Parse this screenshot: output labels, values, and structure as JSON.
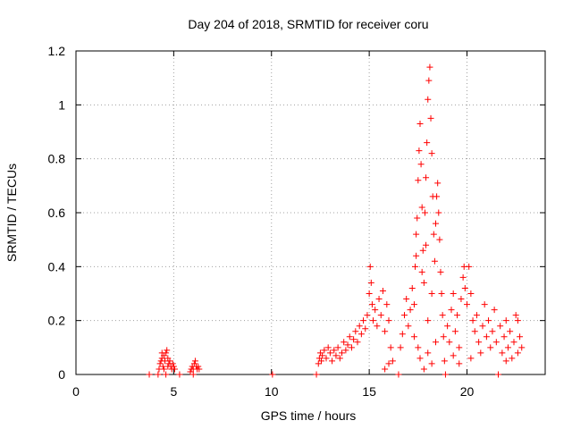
{
  "chart_data": {
    "type": "scatter",
    "title": "Day 204 of 2018, SRMTID for receiver coru",
    "xlabel": "GPS time / hours",
    "ylabel": "SRMTID / TECUs",
    "xlim": [
      0,
      24
    ],
    "ylim": [
      0,
      1.2
    ],
    "x_ticks": [
      0,
      5,
      10,
      15,
      20
    ],
    "x_tick_labels": [
      "0",
      "5",
      "10",
      "15",
      "20"
    ],
    "y_ticks": [
      0,
      0.2,
      0.4,
      0.6,
      0.8,
      1.0,
      1.2
    ],
    "y_tick_labels": [
      "0",
      "0.2",
      "0.4",
      "0.6",
      "0.8",
      "1",
      "1.2"
    ],
    "grid": true,
    "marker": "plus",
    "color": "#ff0000",
    "series": [
      {
        "name": "SRMTID",
        "points": [
          [
            3.75,
            0.0
          ],
          [
            4.2,
            0.0
          ],
          [
            4.6,
            0.0
          ],
          [
            5.3,
            0.0
          ],
          [
            6.0,
            0.0
          ],
          [
            4.25,
            0.02
          ],
          [
            4.3,
            0.04
          ],
          [
            4.35,
            0.05
          ],
          [
            4.4,
            0.06
          ],
          [
            4.45,
            0.03
          ],
          [
            4.5,
            0.07
          ],
          [
            4.55,
            0.05
          ],
          [
            4.6,
            0.08
          ],
          [
            4.65,
            0.09
          ],
          [
            4.7,
            0.06
          ],
          [
            4.75,
            0.04
          ],
          [
            4.8,
            0.05
          ],
          [
            4.85,
            0.03
          ],
          [
            4.9,
            0.02
          ],
          [
            4.95,
            0.04
          ],
          [
            5.0,
            0.03
          ],
          [
            5.05,
            0.02
          ],
          [
            4.5,
            0.02
          ],
          [
            4.7,
            0.03
          ],
          [
            4.4,
            0.08
          ],
          [
            5.85,
            0.01
          ],
          [
            5.9,
            0.02
          ],
          [
            5.95,
            0.03
          ],
          [
            6.0,
            0.02
          ],
          [
            6.05,
            0.04
          ],
          [
            6.1,
            0.05
          ],
          [
            6.15,
            0.03
          ],
          [
            6.2,
            0.02
          ],
          [
            6.25,
            0.03
          ],
          [
            6.3,
            0.02
          ],
          [
            10.05,
            0.0
          ],
          [
            12.3,
            0.0
          ],
          [
            12.4,
            0.04
          ],
          [
            12.45,
            0.06
          ],
          [
            12.5,
            0.08
          ],
          [
            12.55,
            0.05
          ],
          [
            12.6,
            0.07
          ],
          [
            12.7,
            0.09
          ],
          [
            12.8,
            0.06
          ],
          [
            12.9,
            0.1
          ],
          [
            13.0,
            0.08
          ],
          [
            13.1,
            0.05
          ],
          [
            13.2,
            0.09
          ],
          [
            13.3,
            0.07
          ],
          [
            13.4,
            0.1
          ],
          [
            13.5,
            0.06
          ],
          [
            13.6,
            0.08
          ],
          [
            13.7,
            0.12
          ],
          [
            13.8,
            0.09
          ],
          [
            13.9,
            0.11
          ],
          [
            14.0,
            0.14
          ],
          [
            14.1,
            0.1
          ],
          [
            14.2,
            0.13
          ],
          [
            14.3,
            0.16
          ],
          [
            14.4,
            0.12
          ],
          [
            14.5,
            0.18
          ],
          [
            14.6,
            0.15
          ],
          [
            14.7,
            0.2
          ],
          [
            14.8,
            0.17
          ],
          [
            14.9,
            0.22
          ],
          [
            15.0,
            0.3
          ],
          [
            15.05,
            0.4
          ],
          [
            15.1,
            0.34
          ],
          [
            15.15,
            0.26
          ],
          [
            15.2,
            0.2
          ],
          [
            15.3,
            0.24
          ],
          [
            15.4,
            0.18
          ],
          [
            15.5,
            0.28
          ],
          [
            15.6,
            0.22
          ],
          [
            15.7,
            0.31
          ],
          [
            15.8,
            0.16
          ],
          [
            15.9,
            0.26
          ],
          [
            16.0,
            0.2
          ],
          [
            16.1,
            0.1
          ],
          [
            16.2,
            0.05
          ],
          [
            15.8,
            0.02
          ],
          [
            16.0,
            0.04
          ],
          [
            16.5,
            0.0
          ],
          [
            16.6,
            0.1
          ],
          [
            16.7,
            0.15
          ],
          [
            16.8,
            0.22
          ],
          [
            16.9,
            0.28
          ],
          [
            17.0,
            0.18
          ],
          [
            17.1,
            0.24
          ],
          [
            17.2,
            0.32
          ],
          [
            17.3,
            0.26
          ],
          [
            17.35,
            0.4
          ],
          [
            17.4,
            0.52
          ],
          [
            17.45,
            0.58
          ],
          [
            17.5,
            0.72
          ],
          [
            17.55,
            0.83
          ],
          [
            17.6,
            0.93
          ],
          [
            17.65,
            0.78
          ],
          [
            17.7,
            0.62
          ],
          [
            17.75,
            0.46
          ],
          [
            17.8,
            0.34
          ],
          [
            17.85,
            0.6
          ],
          [
            17.9,
            0.73
          ],
          [
            17.95,
            0.86
          ],
          [
            18.0,
            1.02
          ],
          [
            18.05,
            1.09
          ],
          [
            18.1,
            1.14
          ],
          [
            18.15,
            0.95
          ],
          [
            18.2,
            0.82
          ],
          [
            18.25,
            0.66
          ],
          [
            18.3,
            0.52
          ],
          [
            18.35,
            0.42
          ],
          [
            18.4,
            0.56
          ],
          [
            18.45,
            0.66
          ],
          [
            18.5,
            0.71
          ],
          [
            18.55,
            0.6
          ],
          [
            18.6,
            0.5
          ],
          [
            18.65,
            0.38
          ],
          [
            18.7,
            0.3
          ],
          [
            18.75,
            0.22
          ],
          [
            18.8,
            0.14
          ],
          [
            18.85,
            0.05
          ],
          [
            18.9,
            0.0
          ],
          [
            17.5,
            0.1
          ],
          [
            17.6,
            0.06
          ],
          [
            17.8,
            0.02
          ],
          [
            18.0,
            0.08
          ],
          [
            18.2,
            0.04
          ],
          [
            18.4,
            0.12
          ],
          [
            17.9,
            0.48
          ],
          [
            17.4,
            0.44
          ],
          [
            17.7,
            0.38
          ],
          [
            18.2,
            0.3
          ],
          [
            18.0,
            0.2
          ],
          [
            17.3,
            0.14
          ],
          [
            19.0,
            0.18
          ],
          [
            19.1,
            0.12
          ],
          [
            19.2,
            0.24
          ],
          [
            19.3,
            0.3
          ],
          [
            19.4,
            0.16
          ],
          [
            19.5,
            0.22
          ],
          [
            19.6,
            0.1
          ],
          [
            19.7,
            0.28
          ],
          [
            19.8,
            0.36
          ],
          [
            19.85,
            0.4
          ],
          [
            19.9,
            0.32
          ],
          [
            20.0,
            0.26
          ],
          [
            20.1,
            0.4
          ],
          [
            20.2,
            0.3
          ],
          [
            20.3,
            0.2
          ],
          [
            20.4,
            0.16
          ],
          [
            20.5,
            0.22
          ],
          [
            20.6,
            0.12
          ],
          [
            20.7,
            0.08
          ],
          [
            20.8,
            0.18
          ],
          [
            20.9,
            0.26
          ],
          [
            21.0,
            0.14
          ],
          [
            21.1,
            0.2
          ],
          [
            21.2,
            0.1
          ],
          [
            21.3,
            0.16
          ],
          [
            21.4,
            0.24
          ],
          [
            21.5,
            0.12
          ],
          [
            21.6,
            0.0
          ],
          [
            21.7,
            0.18
          ],
          [
            21.8,
            0.08
          ],
          [
            21.9,
            0.14
          ],
          [
            22.0,
            0.2
          ],
          [
            22.1,
            0.1
          ],
          [
            22.2,
            0.16
          ],
          [
            22.3,
            0.06
          ],
          [
            22.4,
            0.12
          ],
          [
            22.5,
            0.22
          ],
          [
            22.6,
            0.08
          ],
          [
            22.7,
            0.14
          ],
          [
            22.8,
            0.1
          ],
          [
            19.3,
            0.07
          ],
          [
            19.6,
            0.04
          ],
          [
            20.2,
            0.06
          ],
          [
            22.0,
            0.05
          ],
          [
            22.6,
            0.2
          ]
        ]
      }
    ]
  }
}
